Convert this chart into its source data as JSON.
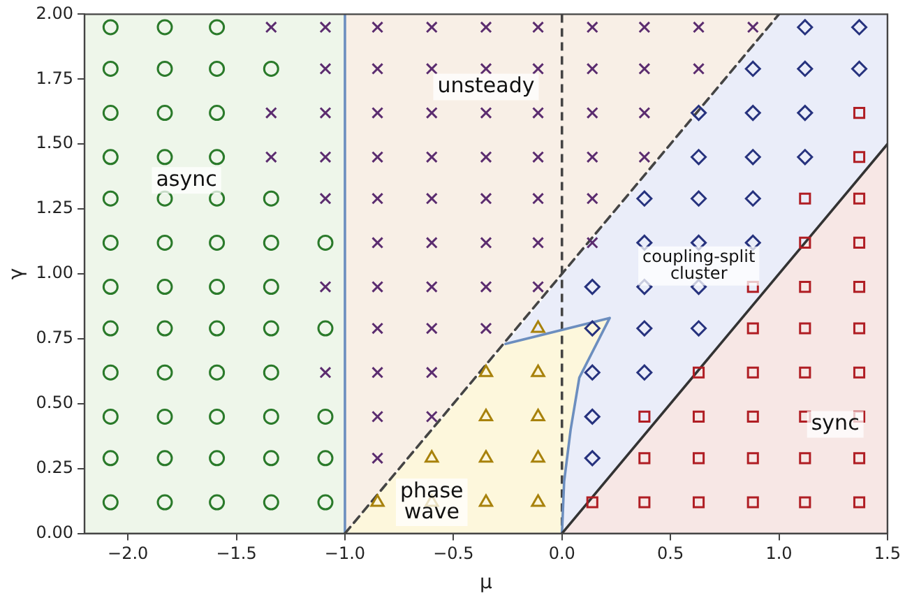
{
  "chart_data": {
    "type": "scatter",
    "xlabel": "μ",
    "ylabel": "γ",
    "xlim": [
      -2.2,
      1.5
    ],
    "ylim": [
      0,
      2
    ],
    "xticks": [
      {
        "value": -2,
        "label": "−2.0"
      },
      {
        "value": -1.5,
        "label": "−1.5"
      },
      {
        "value": -1,
        "label": "−1.0"
      },
      {
        "value": -0.5,
        "label": "−0.5"
      },
      {
        "value": 0,
        "label": "0.0"
      },
      {
        "value": 0.5,
        "label": "0.5"
      },
      {
        "value": 1,
        "label": "1.0"
      },
      {
        "value": 1.5,
        "label": "1.5"
      }
    ],
    "yticks": [
      {
        "value": 0,
        "label": "0.00"
      },
      {
        "value": 0.25,
        "label": "0.25"
      },
      {
        "value": 0.5,
        "label": "0.50"
      },
      {
        "value": 0.75,
        "label": "0.75"
      },
      {
        "value": 1,
        "label": "1.00"
      },
      {
        "value": 1.25,
        "label": "1.25"
      },
      {
        "value": 1.5,
        "label": "1.50"
      },
      {
        "value": 1.75,
        "label": "1.75"
      },
      {
        "value": 2,
        "label": "2.00"
      }
    ],
    "grid": false,
    "legend": false,
    "series": [
      {
        "type": "scatter",
        "marker": "circle",
        "color": "#2a7a2a",
        "x": [
          -2.08,
          -1.83,
          -1.59,
          -2.08,
          -1.83,
          -1.59,
          -1.34,
          -2.08,
          -1.83,
          -1.59,
          -2.08,
          -1.83,
          -1.59,
          -2.08,
          -1.83,
          -1.59,
          -1.34,
          -2.08,
          -1.83,
          -1.59,
          -1.34,
          -1.09,
          -2.08,
          -1.83,
          -1.59,
          -1.34,
          -2.08,
          -1.83,
          -1.59,
          -1.34,
          -1.09,
          -2.08,
          -1.83,
          -1.59,
          -1.34,
          -2.08,
          -1.83,
          -1.59,
          -1.34,
          -1.09,
          -2.08,
          -1.83,
          -1.59,
          -1.34,
          -1.09,
          -2.08,
          -1.83,
          -1.59,
          -1.34,
          -1.09
        ],
        "values": [
          1.95,
          1.95,
          1.95,
          1.79,
          1.79,
          1.79,
          1.79,
          1.62,
          1.62,
          1.62,
          1.45,
          1.45,
          1.45,
          1.29,
          1.29,
          1.29,
          1.29,
          1.12,
          1.12,
          1.12,
          1.12,
          1.12,
          0.95,
          0.95,
          0.95,
          0.95,
          0.79,
          0.79,
          0.79,
          0.79,
          0.79,
          0.62,
          0.62,
          0.62,
          0.62,
          0.45,
          0.45,
          0.45,
          0.45,
          0.45,
          0.29,
          0.29,
          0.29,
          0.29,
          0.29,
          0.12,
          0.12,
          0.12,
          0.12,
          0.12
        ]
      },
      {
        "type": "scatter",
        "marker": "cross",
        "color": "#5b2c6f",
        "x": [
          -1.34,
          -1.09,
          -0.85,
          -0.6,
          -0.35,
          -0.11,
          0.14,
          0.38,
          0.63,
          0.88,
          -1.09,
          -0.85,
          -0.6,
          -0.35,
          -0.11,
          0.14,
          0.38,
          0.63,
          -1.34,
          -1.09,
          -0.85,
          -0.6,
          -0.35,
          -0.11,
          0.14,
          0.38,
          -1.34,
          -1.09,
          -0.85,
          -0.6,
          -0.35,
          -0.11,
          0.14,
          0.38,
          -1.09,
          -0.85,
          -0.6,
          -0.35,
          -0.11,
          0.14,
          -0.85,
          -0.6,
          -0.35,
          -0.11,
          0.14,
          -1.09,
          -0.85,
          -0.6,
          -0.35,
          -0.11,
          -0.85,
          -0.6,
          -0.35,
          -1.09,
          -0.85,
          -0.6,
          -0.85,
          -0.6,
          -0.85
        ],
        "values": [
          1.95,
          1.95,
          1.95,
          1.95,
          1.95,
          1.95,
          1.95,
          1.95,
          1.95,
          1.95,
          1.79,
          1.79,
          1.79,
          1.79,
          1.79,
          1.79,
          1.79,
          1.79,
          1.62,
          1.62,
          1.62,
          1.62,
          1.62,
          1.62,
          1.62,
          1.62,
          1.45,
          1.45,
          1.45,
          1.45,
          1.45,
          1.45,
          1.45,
          1.45,
          1.29,
          1.29,
          1.29,
          1.29,
          1.29,
          1.29,
          1.12,
          1.12,
          1.12,
          1.12,
          1.12,
          0.95,
          0.95,
          0.95,
          0.95,
          0.95,
          0.79,
          0.79,
          0.79,
          0.62,
          0.62,
          0.62,
          0.45,
          0.45,
          0.29
        ]
      },
      {
        "type": "scatter",
        "marker": "triangle",
        "color": "#a8820c",
        "x": [
          -0.11,
          -0.35,
          -0.11,
          -0.35,
          -0.11,
          -0.6,
          -0.35,
          -0.11,
          -0.85,
          -0.6,
          -0.35,
          -0.11
        ],
        "values": [
          0.79,
          0.62,
          0.62,
          0.45,
          0.45,
          0.29,
          0.29,
          0.29,
          0.12,
          0.12,
          0.12,
          0.12
        ]
      },
      {
        "type": "scatter",
        "marker": "diamond",
        "color": "#26327e",
        "x": [
          1.12,
          1.37,
          0.88,
          1.12,
          1.37,
          0.63,
          0.88,
          1.12,
          0.63,
          0.88,
          1.12,
          0.38,
          0.63,
          0.88,
          0.38,
          0.63,
          0.88,
          0.14,
          0.38,
          0.63,
          0.14,
          0.38,
          0.63,
          0.14,
          0.38,
          0.14,
          0.14
        ],
        "values": [
          1.95,
          1.95,
          1.79,
          1.79,
          1.79,
          1.62,
          1.62,
          1.62,
          1.45,
          1.45,
          1.45,
          1.29,
          1.29,
          1.29,
          1.12,
          1.12,
          1.12,
          0.95,
          0.95,
          0.95,
          0.79,
          0.79,
          0.79,
          0.62,
          0.62,
          0.45,
          0.29
        ]
      },
      {
        "type": "scatter",
        "marker": "square",
        "color": "#b01e24",
        "x": [
          1.37,
          1.37,
          1.12,
          1.37,
          1.12,
          1.37,
          0.88,
          1.12,
          1.37,
          0.88,
          1.12,
          1.37,
          0.63,
          0.88,
          1.12,
          1.37,
          0.38,
          0.63,
          0.88,
          1.12,
          1.37,
          0.38,
          0.63,
          0.88,
          1.12,
          1.37,
          0.14,
          0.38,
          0.63,
          0.88,
          1.12,
          1.37
        ],
        "values": [
          1.62,
          1.45,
          1.29,
          1.29,
          1.12,
          1.12,
          0.95,
          0.95,
          0.95,
          0.79,
          0.79,
          0.79,
          0.62,
          0.62,
          0.62,
          0.62,
          0.45,
          0.45,
          0.45,
          0.45,
          0.45,
          0.29,
          0.29,
          0.29,
          0.29,
          0.29,
          0.12,
          0.12,
          0.12,
          0.12,
          0.12,
          0.12
        ]
      },
      {
        "type": "line",
        "color": "#444444",
        "line_style": "dashed",
        "x": [
          -1,
          1
        ],
        "values": [
          0,
          2
        ]
      },
      {
        "type": "line",
        "color": "#333333",
        "line_style": "solid",
        "x": [
          0,
          1.5
        ],
        "values": [
          0,
          1.5
        ]
      },
      {
        "type": "line",
        "color": "#6c8ebf",
        "line_style": "solid",
        "x": [
          0,
          0.01,
          0.04,
          0.08,
          0.22,
          -0.26
        ],
        "values": [
          0,
          0.2,
          0.4,
          0.6,
          0.83,
          0.73
        ]
      }
    ],
    "ref_lines": [
      {
        "axis": "x",
        "value": -1,
        "color": "#6c8ebf",
        "line_style": "solid"
      },
      {
        "axis": "x",
        "value": 0,
        "color": "#444444",
        "line_style": "dashed"
      }
    ],
    "bands": [
      {
        "axis": "x",
        "from": -2.2,
        "to": -1,
        "color": "#eef6ea"
      }
    ],
    "annotations": [
      "async",
      "unsteady",
      {
        "text": "phase wave",
        "x": -0.6,
        "y": 0.12
      },
      "coupling-split cluster",
      "sync"
    ]
  }
}
